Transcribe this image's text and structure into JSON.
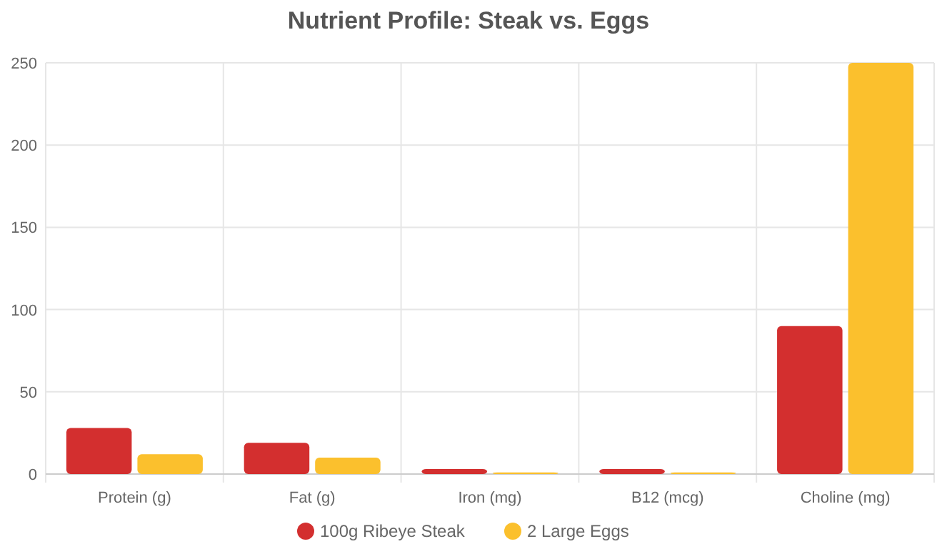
{
  "chart_data": {
    "type": "bar",
    "title": "Nutrient Profile: Steak vs. Eggs",
    "categories": [
      "Protein (g)",
      "Fat (g)",
      "Iron (mg)",
      "B12 (mcg)",
      "Choline (mg)"
    ],
    "series": [
      {
        "name": "100g Ribeye Steak",
        "color": "#d32f2f",
        "values": [
          28,
          19,
          3,
          3,
          90
        ]
      },
      {
        "name": "2 Large Eggs",
        "color": "#fbc02d",
        "values": [
          12,
          10,
          1,
          1,
          250
        ]
      }
    ],
    "ylim": [
      0,
      250
    ],
    "yticks": [
      0,
      50,
      100,
      150,
      200,
      250
    ],
    "grid": true,
    "legend": "bottom"
  }
}
